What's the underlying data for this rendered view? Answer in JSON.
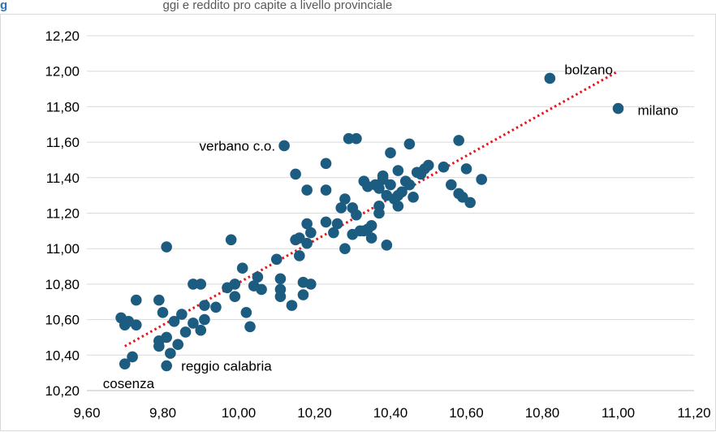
{
  "caption": {
    "figure_label": "g",
    "text": "ggi e reddito pro capite a livello provinciale"
  },
  "chart_data": {
    "type": "scatter",
    "title": "",
    "xlabel": "",
    "ylabel": "",
    "xlim": [
      9.6,
      11.2
    ],
    "ylim": [
      10.2,
      12.2
    ],
    "x_ticks": [
      "9,60",
      "9,80",
      "10,00",
      "10,20",
      "10,40",
      "10,60",
      "10,80",
      "11,00",
      "11,20"
    ],
    "y_ticks": [
      "10,20",
      "10,40",
      "10,60",
      "10,80",
      "11,00",
      "11,20",
      "11,40",
      "11,60",
      "11,80",
      "12,00",
      "12,20"
    ],
    "grid": "horizontal",
    "marker_color": "#1c5c80",
    "trendline": {
      "style": "dotted",
      "color": "#e8141b",
      "from": [
        9.7,
        10.45
      ],
      "to": [
        11.0,
        12.0
      ]
    },
    "annotations": [
      {
        "text": "bolzano",
        "x": 10.82,
        "y": 11.96
      },
      {
        "text": "milano",
        "x": 11.0,
        "y": 11.79
      },
      {
        "text": "verbano c.o.",
        "x": 10.12,
        "y": 11.58
      },
      {
        "text": "reggio calabria",
        "x": 9.81,
        "y": 10.34
      },
      {
        "text": "cosenza",
        "x": 9.7,
        "y": 10.35
      }
    ],
    "points": [
      [
        9.69,
        10.61
      ],
      [
        9.7,
        10.35
      ],
      [
        9.7,
        10.57
      ],
      [
        9.71,
        10.59
      ],
      [
        9.72,
        10.39
      ],
      [
        9.73,
        10.71
      ],
      [
        9.73,
        10.57
      ],
      [
        9.79,
        10.71
      ],
      [
        9.79,
        10.48
      ],
      [
        9.79,
        10.45
      ],
      [
        9.8,
        10.64
      ],
      [
        9.81,
        11.01
      ],
      [
        9.81,
        10.34
      ],
      [
        9.81,
        10.5
      ],
      [
        9.82,
        10.41
      ],
      [
        9.83,
        10.59
      ],
      [
        9.84,
        10.46
      ],
      [
        9.85,
        10.63
      ],
      [
        9.86,
        10.53
      ],
      [
        9.88,
        10.8
      ],
      [
        9.88,
        10.58
      ],
      [
        9.9,
        10.8
      ],
      [
        9.9,
        10.54
      ],
      [
        9.91,
        10.6
      ],
      [
        9.91,
        10.68
      ],
      [
        9.94,
        10.67
      ],
      [
        9.97,
        10.78
      ],
      [
        9.98,
        11.05
      ],
      [
        9.99,
        10.8
      ],
      [
        9.99,
        10.73
      ],
      [
        10.01,
        10.89
      ],
      [
        10.02,
        10.64
      ],
      [
        10.03,
        10.56
      ],
      [
        10.04,
        10.79
      ],
      [
        10.05,
        10.84
      ],
      [
        10.06,
        10.77
      ],
      [
        10.1,
        10.94
      ],
      [
        10.11,
        10.83
      ],
      [
        10.11,
        10.77
      ],
      [
        10.11,
        10.73
      ],
      [
        10.12,
        11.58
      ],
      [
        10.14,
        10.68
      ],
      [
        10.15,
        11.05
      ],
      [
        10.15,
        11.42
      ],
      [
        10.16,
        10.96
      ],
      [
        10.16,
        11.06
      ],
      [
        10.17,
        10.81
      ],
      [
        10.17,
        10.74
      ],
      [
        10.18,
        11.14
      ],
      [
        10.18,
        11.33
      ],
      [
        10.18,
        11.03
      ],
      [
        10.19,
        11.09
      ],
      [
        10.19,
        10.8
      ],
      [
        10.23,
        11.48
      ],
      [
        10.23,
        11.33
      ],
      [
        10.23,
        11.15
      ],
      [
        10.25,
        11.09
      ],
      [
        10.26,
        11.14
      ],
      [
        10.27,
        11.23
      ],
      [
        10.28,
        11.28
      ],
      [
        10.28,
        11.0
      ],
      [
        10.29,
        11.62
      ],
      [
        10.3,
        11.08
      ],
      [
        10.3,
        11.23
      ],
      [
        10.31,
        11.62
      ],
      [
        10.31,
        11.19
      ],
      [
        10.32,
        11.1
      ],
      [
        10.33,
        11.1
      ],
      [
        10.33,
        11.38
      ],
      [
        10.34,
        11.11
      ],
      [
        10.34,
        11.35
      ],
      [
        10.35,
        11.13
      ],
      [
        10.35,
        11.06
      ],
      [
        10.36,
        11.36
      ],
      [
        10.37,
        11.34
      ],
      [
        10.37,
        11.2
      ],
      [
        10.37,
        11.24
      ],
      [
        10.38,
        11.41
      ],
      [
        10.38,
        11.39
      ],
      [
        10.39,
        11.02
      ],
      [
        10.39,
        11.3
      ],
      [
        10.4,
        11.54
      ],
      [
        10.4,
        11.36
      ],
      [
        10.41,
        11.28
      ],
      [
        10.42,
        11.44
      ],
      [
        10.42,
        11.24
      ],
      [
        10.42,
        11.3
      ],
      [
        10.43,
        11.32
      ],
      [
        10.44,
        11.38
      ],
      [
        10.45,
        11.59
      ],
      [
        10.45,
        11.36
      ],
      [
        10.46,
        11.29
      ],
      [
        10.47,
        11.43
      ],
      [
        10.48,
        11.42
      ],
      [
        10.49,
        11.45
      ],
      [
        10.5,
        11.47
      ],
      [
        10.54,
        11.46
      ],
      [
        10.56,
        11.36
      ],
      [
        10.58,
        11.31
      ],
      [
        10.58,
        11.61
      ],
      [
        10.59,
        11.29
      ],
      [
        10.6,
        11.45
      ],
      [
        10.61,
        11.26
      ],
      [
        10.64,
        11.39
      ],
      [
        10.82,
        11.96
      ],
      [
        11.0,
        11.79
      ]
    ]
  }
}
